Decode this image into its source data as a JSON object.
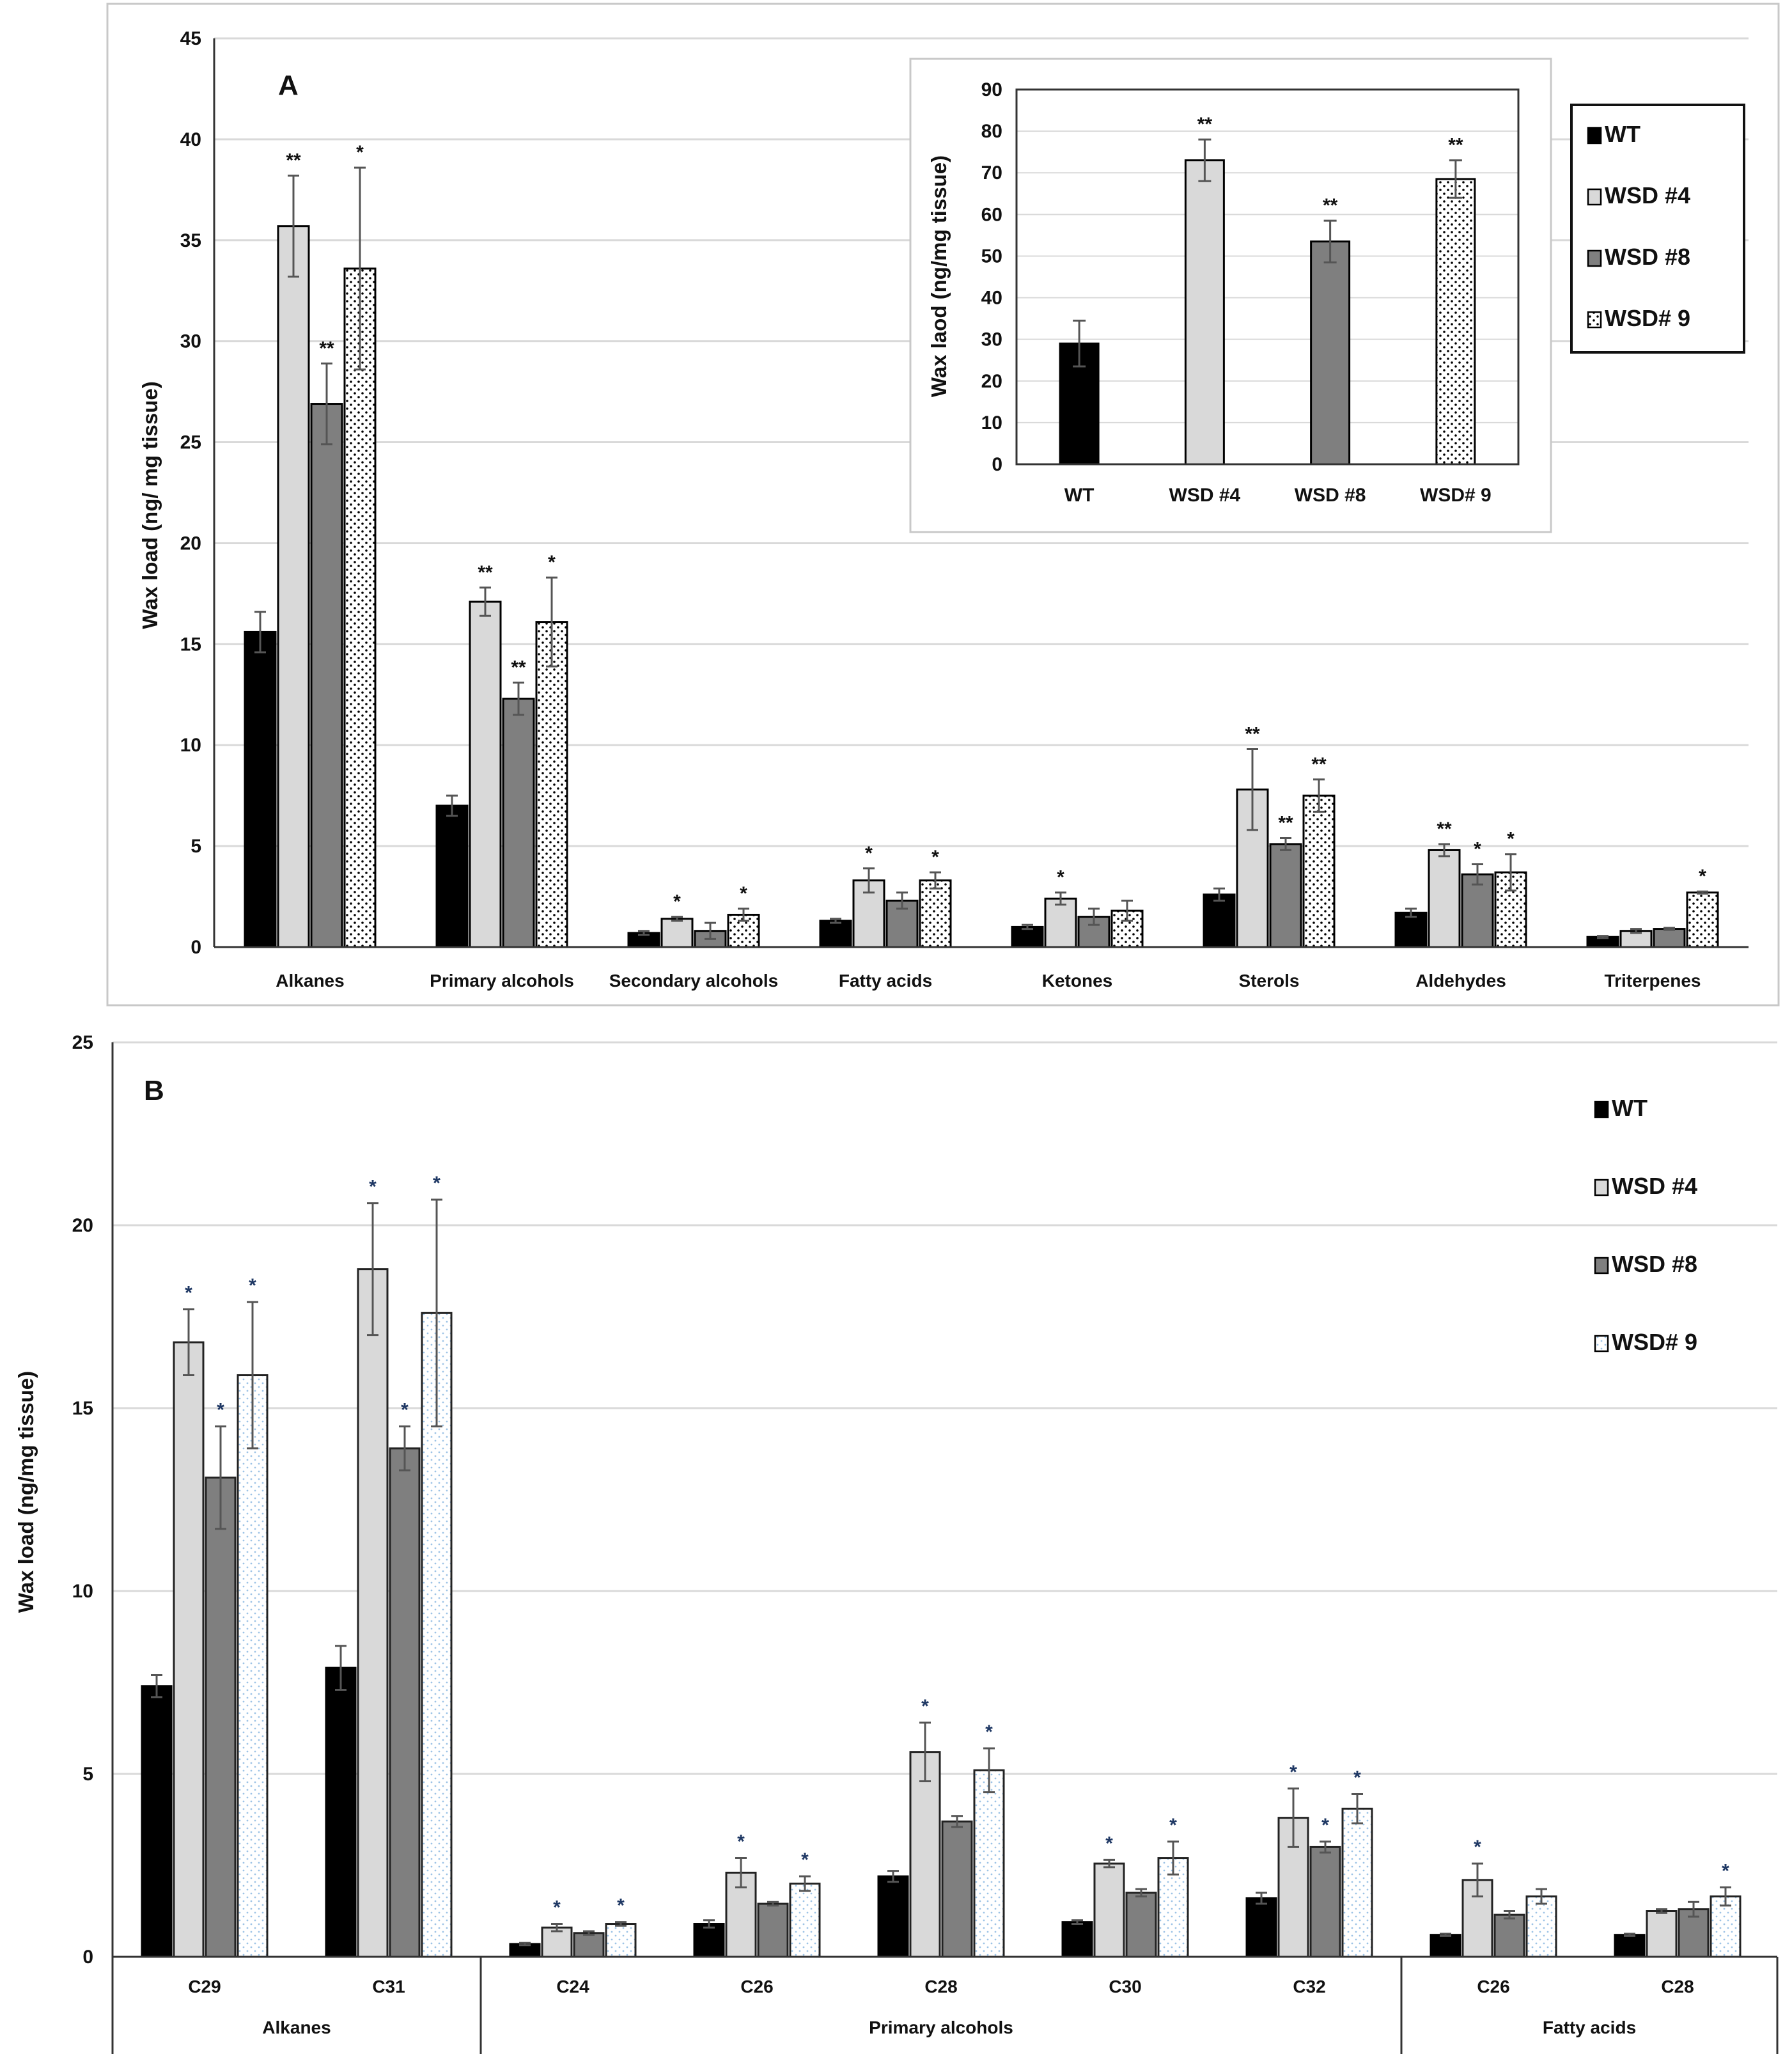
{
  "colors": {
    "WT": "#000000",
    "WSD #4": "#d9d9d9",
    "WSD #8": "#7f7f7f",
    "WSD# 9": "#ffffff",
    "grid": "#d9d9d9",
    "frame": "#bfbfbf"
  },
  "legend_styles": [
    "solid-black",
    "light-gray",
    "dark-gray",
    "dotted-white"
  ],
  "chart_data": [
    {
      "id": "A",
      "type": "bar",
      "panel_label": "A",
      "ylabel": "Wax load (ng/ mg tissue)",
      "ylim": [
        0,
        45
      ],
      "yticks": [
        0,
        5,
        10,
        15,
        20,
        25,
        30,
        35,
        40,
        45
      ],
      "grid": true,
      "legend": "right",
      "legend_labels": [
        "WT",
        "WSD #4",
        "WSD #8",
        "WSD# 9"
      ],
      "categories": [
        "Alkanes",
        "Primary alcohols",
        "Secondary alcohols",
        "Fatty acids",
        "Ketones",
        "Sterols",
        "Aldehydes",
        "Triterpenes"
      ],
      "series": [
        {
          "name": "WT",
          "values": [
            15.6,
            7.0,
            0.7,
            1.3,
            1.0,
            2.6,
            1.7,
            0.5
          ],
          "errors": [
            1.0,
            0.5,
            0.1,
            0.1,
            0.1,
            0.3,
            0.2,
            0.05
          ],
          "stars": [
            "",
            "",
            "",
            "",
            "",
            "",
            "",
            ""
          ]
        },
        {
          "name": "WSD #4",
          "values": [
            35.7,
            17.1,
            1.4,
            3.3,
            2.4,
            7.8,
            4.8,
            0.8
          ],
          "errors": [
            2.5,
            0.7,
            0.1,
            0.6,
            0.3,
            2.0,
            0.3,
            0.1
          ],
          "stars": [
            "**",
            "**",
            "*",
            "*",
            "*",
            "**",
            "**",
            ""
          ]
        },
        {
          "name": "WSD #8",
          "values": [
            26.9,
            12.3,
            0.8,
            2.3,
            1.5,
            5.1,
            3.6,
            0.9
          ],
          "errors": [
            2.0,
            0.8,
            0.4,
            0.4,
            0.4,
            0.3,
            0.5,
            0.05
          ],
          "stars": [
            "**",
            "**",
            "",
            "",
            "",
            "**",
            "*",
            ""
          ]
        },
        {
          "name": "WSD# 9",
          "values": [
            33.6,
            16.1,
            1.6,
            3.3,
            1.8,
            7.5,
            3.7,
            2.7
          ],
          "errors": [
            5.0,
            2.2,
            0.3,
            0.4,
            0.5,
            0.8,
            0.9,
            0.05
          ],
          "stars": [
            "*",
            "*",
            "*",
            "*",
            "",
            "**",
            "*",
            "*"
          ]
        }
      ]
    },
    {
      "id": "A-inset",
      "type": "bar",
      "ylabel": "Wax laod (ng/mg tissue)",
      "ylim": [
        0,
        90
      ],
      "yticks": [
        0,
        10,
        20,
        30,
        40,
        50,
        60,
        70,
        80,
        90
      ],
      "grid": true,
      "categories": [
        "WT",
        "WSD #4",
        "WSD #8",
        "WSD# 9"
      ],
      "values": [
        29,
        73,
        53.5,
        68.5
      ],
      "errors": [
        5.5,
        5,
        5,
        4.5
      ],
      "stars": [
        "",
        "**",
        "**",
        "**"
      ]
    },
    {
      "id": "B",
      "type": "bar",
      "panel_label": "B",
      "ylabel": "Wax load (ng/mg tissue)",
      "ylim": [
        0,
        25
      ],
      "yticks": [
        0,
        5,
        10,
        15,
        20,
        25
      ],
      "grid": true,
      "legend": "top-right",
      "legend_labels": [
        "WT",
        "WSD #4",
        "WSD #8",
        "WSD# 9"
      ],
      "categories": [
        "C29",
        "C31",
        "C24",
        "C26",
        "C28",
        "C30",
        "C32",
        "C26",
        "C28"
      ],
      "groups": [
        {
          "label": "Alkanes",
          "count": 2
        },
        {
          "label": "Primary alcohols",
          "count": 5
        },
        {
          "label": "Fatty acids",
          "count": 2
        }
      ],
      "series": [
        {
          "name": "WT",
          "values": [
            7.4,
            7.9,
            0.35,
            0.9,
            2.2,
            0.95,
            1.6,
            0.6,
            0.6
          ],
          "errors": [
            0.3,
            0.6,
            0.03,
            0.1,
            0.15,
            0.05,
            0.15,
            0.03,
            0.03
          ],
          "stars": [
            "",
            "",
            "",
            "",
            "",
            "",
            "",
            "",
            ""
          ]
        },
        {
          "name": "WSD #4",
          "values": [
            16.8,
            18.8,
            0.8,
            2.3,
            5.6,
            2.55,
            3.8,
            2.1,
            1.25
          ],
          "errors": [
            0.9,
            1.8,
            0.1,
            0.4,
            0.8,
            0.1,
            0.8,
            0.45,
            0.05
          ],
          "stars": [
            "*",
            "*",
            "*",
            "*",
            "*",
            "*",
            "*",
            "*",
            ""
          ]
        },
        {
          "name": "WSD #8",
          "values": [
            13.1,
            13.9,
            0.65,
            1.45,
            3.7,
            1.75,
            3.0,
            1.15,
            1.3
          ],
          "errors": [
            1.4,
            0.6,
            0.05,
            0.05,
            0.15,
            0.1,
            0.15,
            0.1,
            0.2
          ],
          "stars": [
            "*",
            "*",
            "",
            "",
            "",
            "",
            "*",
            "",
            ""
          ]
        },
        {
          "name": "WSD# 9",
          "values": [
            15.9,
            17.6,
            0.9,
            2.0,
            5.1,
            2.7,
            4.05,
            1.65,
            1.65
          ],
          "errors": [
            2.0,
            3.1,
            0.05,
            0.2,
            0.6,
            0.45,
            0.4,
            0.2,
            0.25
          ],
          "stars": [
            "*",
            "*",
            "*",
            "*",
            "*",
            "*",
            "*",
            "",
            "*"
          ]
        }
      ]
    }
  ]
}
